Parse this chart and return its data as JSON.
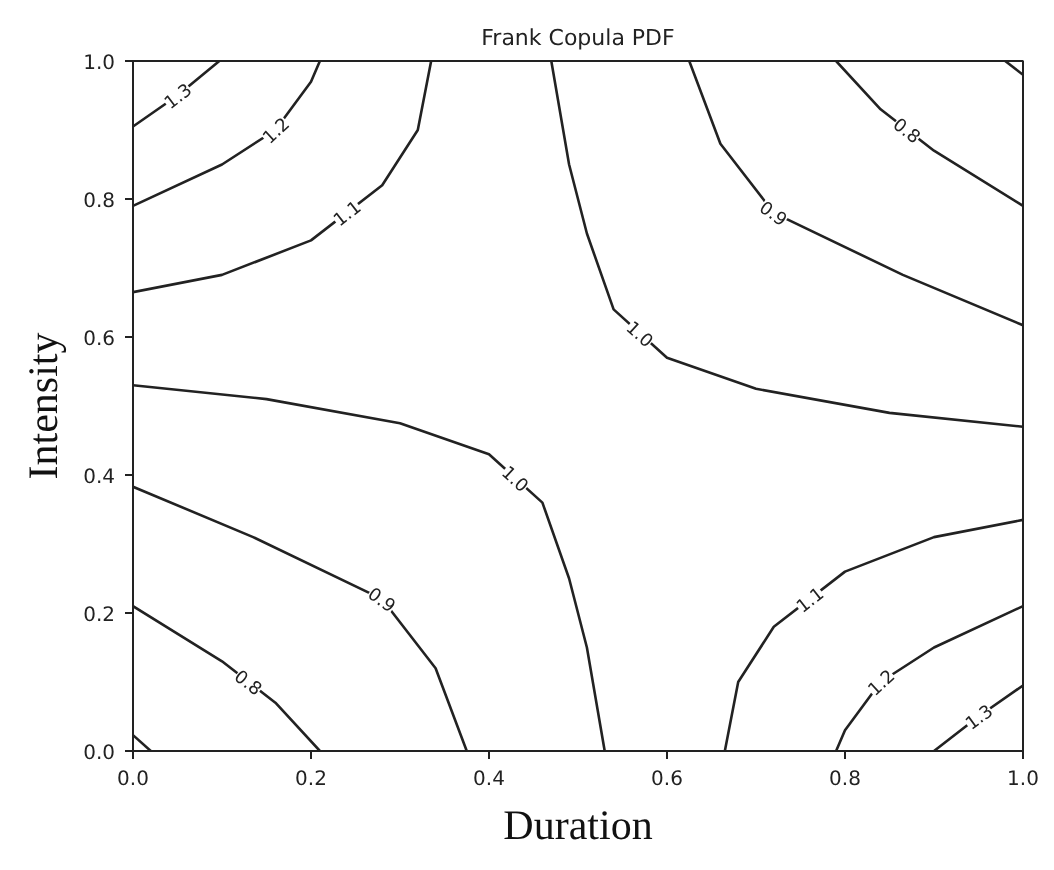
{
  "chart_data": {
    "type": "line",
    "title": "Frank Copula PDF",
    "xlabel": "Duration",
    "ylabel": "Intensity",
    "xlim": [
      0.0,
      1.0
    ],
    "ylim": [
      0.0,
      1.0
    ],
    "xticks": [
      {
        "value": 0,
        "label": "0.0"
      },
      {
        "value": 0.2,
        "label": "0.2"
      },
      {
        "value": 0.4,
        "label": "0.4"
      },
      {
        "value": 0.6,
        "label": "0.6"
      },
      {
        "value": 0.8,
        "label": "0.8"
      },
      {
        "value": 1,
        "label": "1.0"
      }
    ],
    "yticks": [
      {
        "value": 0,
        "label": "0.0"
      },
      {
        "value": 0.2,
        "label": "0.2"
      },
      {
        "value": 0.4,
        "label": "0.4"
      },
      {
        "value": 0.6,
        "label": "0.6"
      },
      {
        "value": 0.8,
        "label": "0.8"
      },
      {
        "value": 1,
        "label": "1.0"
      }
    ],
    "grid": false,
    "legend": false,
    "marker": "none",
    "line_style": "solid",
    "series": [
      {
        "name": "1.3",
        "color": "#222222",
        "x": [
          0,
          0.05,
          0.097
        ],
        "values": [
          0.905,
          0.95,
          1.0
        ]
      },
      {
        "name": "1.3",
        "color": "#222222",
        "x": [
          0.9,
          0.95,
          1.0
        ],
        "values": [
          0,
          0.05,
          0.095
        ]
      },
      {
        "name": "1.2",
        "color": "#222222",
        "x": [
          0,
          0.1,
          0.16,
          0.2,
          0.21
        ],
        "values": [
          0.79,
          0.85,
          0.9,
          0.97,
          1.0
        ]
      },
      {
        "name": "1.2",
        "color": "#222222",
        "x": [
          0.79,
          0.8,
          0.84,
          0.9,
          1.0
        ],
        "values": [
          0,
          0.03,
          0.1,
          0.15,
          0.21
        ]
      },
      {
        "name": "1.1",
        "color": "#222222",
        "x": [
          0,
          0.1,
          0.2,
          0.28,
          0.32,
          0.335
        ],
        "values": [
          0.665,
          0.69,
          0.74,
          0.82,
          0.9,
          1.0
        ]
      },
      {
        "name": "1.1",
        "color": "#222222",
        "x": [
          0.665,
          0.68,
          0.72,
          0.8,
          0.9,
          1.0
        ],
        "values": [
          0,
          0.1,
          0.18,
          0.26,
          0.31,
          0.335
        ]
      },
      {
        "name": "1.0",
        "color": "#222222",
        "x": [
          0,
          0.15,
          0.3,
          0.4,
          0.46,
          0.49,
          0.51,
          0.53
        ],
        "values": [
          0.53,
          0.51,
          0.475,
          0.43,
          0.36,
          0.25,
          0.15,
          0
        ]
      },
      {
        "name": "1.0",
        "color": "#222222",
        "x": [
          0.47,
          0.49,
          0.51,
          0.54,
          0.6,
          0.7,
          0.85,
          1.0
        ],
        "values": [
          1.0,
          0.85,
          0.75,
          0.64,
          0.57,
          0.525,
          0.49,
          0.47
        ]
      },
      {
        "name": "0.9",
        "color": "#222222",
        "x": [
          0,
          0.135,
          0.28,
          0.34,
          0.375
        ],
        "values": [
          0.383,
          0.31,
          0.22,
          0.12,
          0
        ]
      },
      {
        "name": "0.9",
        "color": "#222222",
        "x": [
          0.625,
          0.66,
          0.72,
          0.865,
          1.0
        ],
        "values": [
          1.0,
          0.88,
          0.78,
          0.69,
          0.617
        ]
      },
      {
        "name": "0.8",
        "color": "#222222",
        "x": [
          0,
          0.1,
          0.16,
          0.21
        ],
        "values": [
          0.21,
          0.13,
          0.07,
          0
        ]
      },
      {
        "name": "0.8",
        "color": "#222222",
        "x": [
          0.79,
          0.84,
          0.9,
          1.0
        ],
        "values": [
          1.0,
          0.93,
          0.87,
          0.79
        ]
      },
      {
        "color": "#222222",
        "x": [
          0,
          0.02
        ],
        "values": [
          0.023,
          0
        ]
      },
      {
        "color": "#222222",
        "x": [
          0.98,
          1.0
        ],
        "values": [
          1.0,
          0.98
        ]
      }
    ]
  }
}
